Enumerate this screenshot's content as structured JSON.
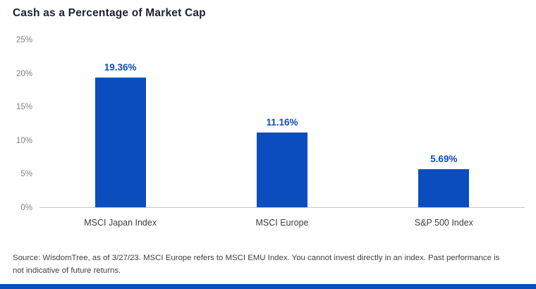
{
  "page": {
    "title": "Cash as a Percentage of Market Cap",
    "source_text": "Source: WisdomTree, as of 3/27/23. MSCI Europe refers to MSCI EMU Index. You cannot invest directly in an index. Past performance is not indicative of future returns."
  },
  "colors": {
    "brand_blue": "#0b4dbe",
    "title_navy": "#1b2135",
    "axis_gray": "#c4c4c4",
    "tick_gray": "#808080",
    "text_gray": "#3f3f3f"
  },
  "chart_data": {
    "type": "bar",
    "title": "Cash as a Percentage of Market Cap",
    "categories": [
      "MSCI Japan Index",
      "MSCI Europe",
      "S&P 500 Index"
    ],
    "values": [
      19.36,
      11.16,
      5.69
    ],
    "value_labels": [
      "19.36%",
      "11.16%",
      "5.69%"
    ],
    "xlabel": "",
    "ylabel": "",
    "ylim": [
      0,
      25
    ],
    "yticks": [
      0,
      5,
      10,
      15,
      20,
      25
    ],
    "ytick_labels": [
      "0%",
      "5%",
      "10%",
      "15%",
      "20%",
      "25%"
    ],
    "grid": false,
    "legend": "none",
    "bar_color": "#0b4dbe"
  }
}
